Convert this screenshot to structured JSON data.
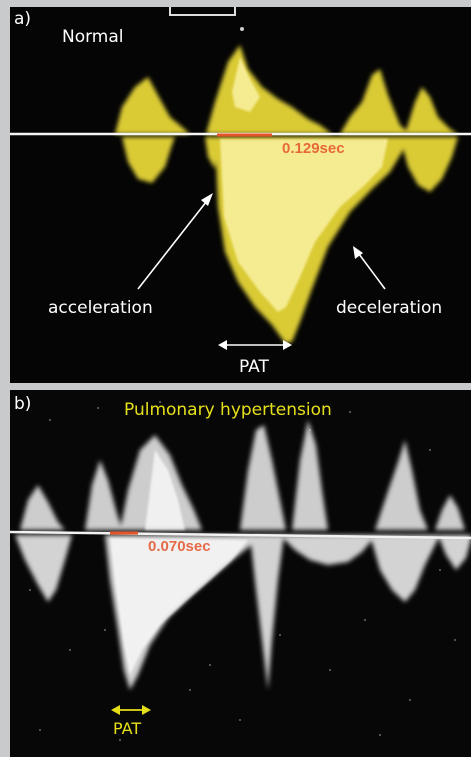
{
  "panel_a": {
    "letter": "a)",
    "title": "Normal",
    "time_label": "0.129sec",
    "acceleration_label": "acceleration",
    "deceleration_label": "deceleration",
    "pat_label": "PAT",
    "signal_color": "#f2e13a",
    "marker_color": "#e5532a"
  },
  "panel_b": {
    "letter": "b)",
    "title": "Pulmonary hypertension",
    "time_label": "0.070sec",
    "pat_label": "PAT",
    "signal_color": "#f0f0f0",
    "marker_color": "#e5532a",
    "annotation_color": "#e6e01a"
  }
}
